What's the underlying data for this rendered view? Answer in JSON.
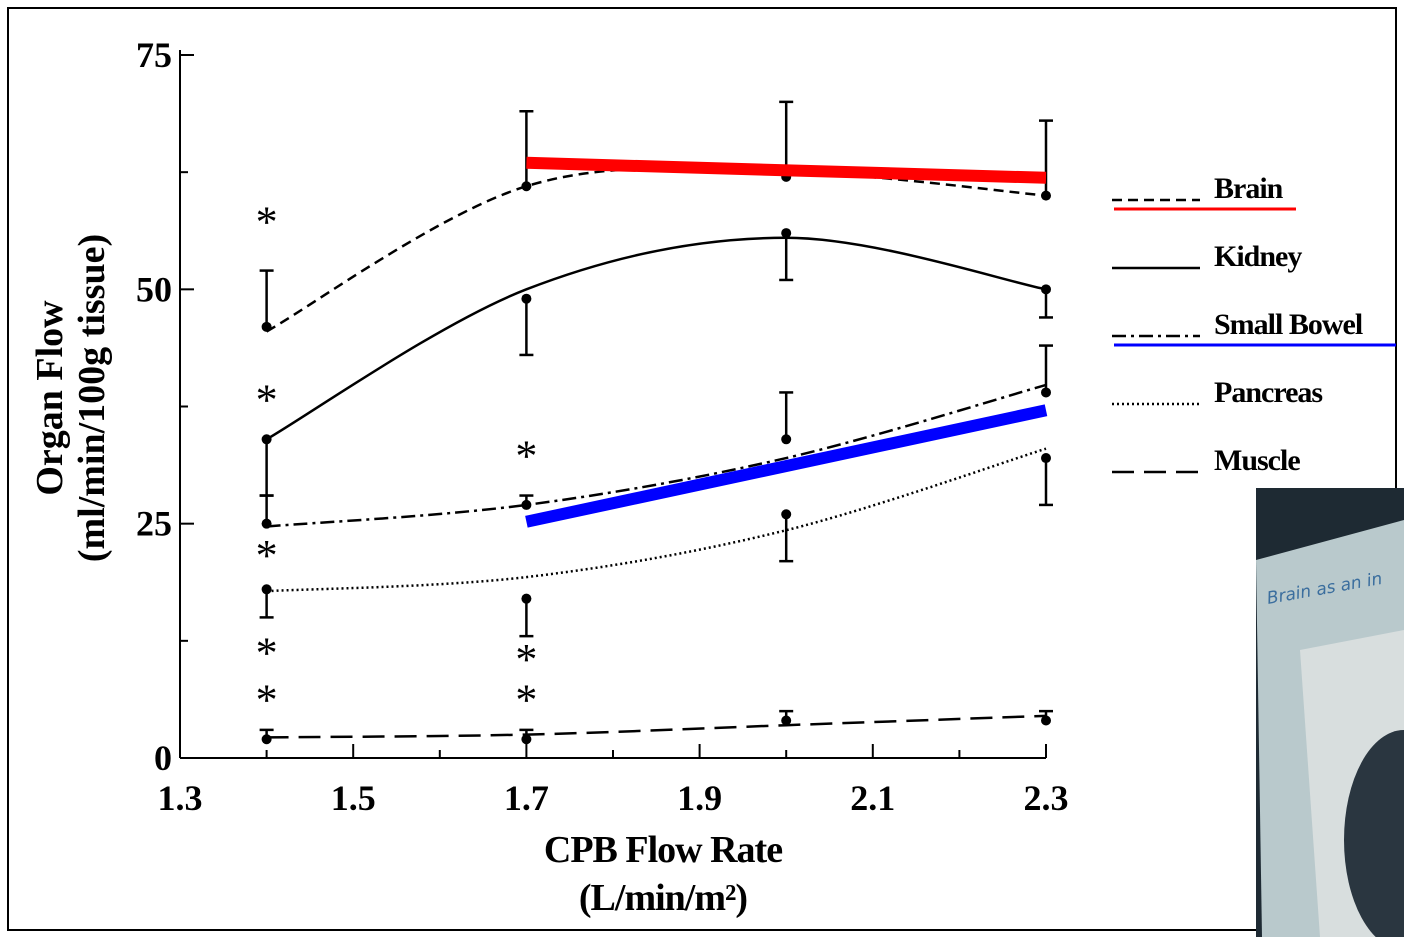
{
  "chart_data": {
    "type": "line",
    "y_label": [
      "Organ Flow",
      "(ml/min/100g tissue)"
    ],
    "x_label": [
      "CPB Flow Rate",
      "(L/min/m²)"
    ],
    "xlim": [
      1.3,
      2.3
    ],
    "xticks": [
      1.3,
      1.5,
      1.7,
      1.9,
      2.1,
      2.3
    ],
    "xminor": [
      1.4,
      1.6,
      1.8,
      2.0,
      2.2
    ],
    "ylim": [
      0,
      75
    ],
    "yticks": [
      0,
      25,
      50,
      75
    ],
    "yminor": [
      12.5,
      37.5,
      62.5
    ],
    "x": [
      1.4,
      1.7,
      2.0,
      2.3
    ],
    "series": [
      {
        "name": "Brain",
        "color": "#000000",
        "dash": "10,6",
        "underline": "#ff0000",
        "values": [
          46,
          61,
          62,
          60
        ],
        "error_ends": [
          52,
          69,
          70,
          68
        ],
        "fit": [
          45.5,
          61,
          62.5,
          60
        ]
      },
      {
        "name": "Kidney",
        "color": "#000000",
        "dash": "none",
        "values": [
          34,
          49,
          56,
          50
        ],
        "error_ends": [
          28,
          43,
          51,
          47
        ],
        "fit": [
          34,
          50,
          55.5,
          50
        ]
      },
      {
        "name": "Small Bowel",
        "color": "#000000",
        "dash": "14,5,3,5",
        "underline": "#0000ff",
        "values": [
          25,
          27,
          34,
          39
        ],
        "error_ends": [
          28,
          28,
          39,
          44
        ],
        "fit": [
          24.7,
          27,
          32,
          39.8
        ]
      },
      {
        "name": "Pancreas",
        "color": "#000000",
        "dash": "2,3",
        "values": [
          18,
          17,
          26,
          32
        ],
        "error_ends": [
          15,
          13,
          21,
          27
        ],
        "fit": [
          17.8,
          19.3,
          24.3,
          33
        ]
      },
      {
        "name": "Muscle",
        "color": "#000000",
        "dash": "22,10",
        "values": [
          2,
          2,
          4,
          4
        ],
        "error_ends": [
          3,
          3,
          5,
          5
        ],
        "fit": [
          2.2,
          2.5,
          3.5,
          4.5
        ]
      }
    ],
    "overlays": [
      {
        "color": "#ff0000",
        "x": [
          1.7,
          2.3
        ],
        "values": [
          63.5,
          61.9
        ]
      },
      {
        "color": "#0000ff",
        "x": [
          1.7,
          2.3
        ],
        "values": [
          25.2,
          37.1
        ]
      }
    ],
    "annotations": [
      {
        "text": "*",
        "x": 1.4,
        "y": 58
      },
      {
        "text": "*",
        "x": 1.4,
        "y": 39
      },
      {
        "text": "*",
        "x": 1.4,
        "y": 22.4
      },
      {
        "text": "*",
        "x": 1.4,
        "y": 12
      },
      {
        "text": "*",
        "x": 1.4,
        "y": 7
      },
      {
        "text": "*",
        "x": 1.7,
        "y": 33
      },
      {
        "text": "*",
        "x": 1.7,
        "y": 11.3
      },
      {
        "text": "*",
        "x": 1.7,
        "y": 7
      }
    ]
  },
  "inset": {
    "text": "Brain as an in"
  }
}
